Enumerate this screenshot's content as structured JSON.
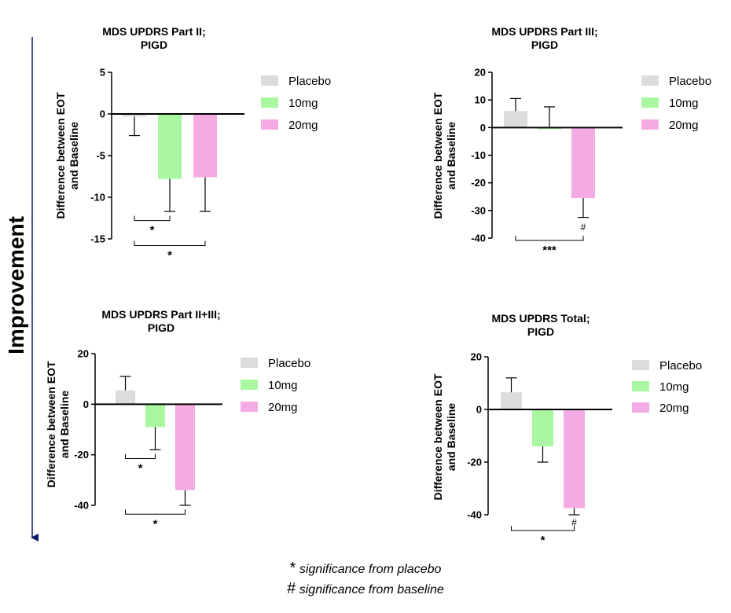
{
  "side_label": "Improvement",
  "footnotes": [
    {
      "symbol": "*",
      "text": "significance from placebo"
    },
    {
      "symbol": "#",
      "text": "significance from baseline"
    }
  ],
  "legend": [
    {
      "label": "Placebo",
      "color": "#dcdcdc"
    },
    {
      "label": "10mg",
      "color": "#a9f7a0"
    },
    {
      "label": "20mg",
      "color": "#f4abe3"
    }
  ],
  "chart_data": [
    {
      "type": "bar",
      "title_lines": [
        "MDS UPDRS Part II;",
        "PIGD"
      ],
      "ylabel_lines": [
        "Difference between EOT",
        "and Baseline"
      ],
      "categories": [
        "Placebo",
        "10mg",
        "20mg"
      ],
      "values": [
        -0.3,
        -7.8,
        -7.6
      ],
      "errors": [
        2.3,
        3.9,
        4.1
      ],
      "ylim": [
        -15,
        5
      ],
      "yticks": [
        5,
        0,
        -5,
        -10,
        -15
      ],
      "ytick_labels": [
        "5",
        "0",
        "-5",
        "-10",
        "-15"
      ],
      "colors": [
        "#dcdcdc",
        "#a9f7a0",
        "#f4abe3"
      ],
      "significance": [
        {
          "from": 0,
          "to": 1,
          "label": "*",
          "y": -12.8
        },
        {
          "from": 0,
          "to": 2,
          "label": "*",
          "y": -15.8
        }
      ],
      "bar_annotations": []
    },
    {
      "type": "bar",
      "title_lines": [
        "MDS UPDRS Part III;",
        "PIGD"
      ],
      "ylabel_lines": [
        "Difference between EOT",
        "and Baseline"
      ],
      "categories": [
        "Placebo",
        "10mg",
        "20mg"
      ],
      "values": [
        6.0,
        0,
        -25.5
      ],
      "errors": [
        4.5,
        7.5,
        7.0
      ],
      "ylim": [
        -40,
        20
      ],
      "yticks": [
        20,
        10,
        0,
        -10,
        -20,
        -30,
        -40
      ],
      "ytick_labels": [
        "20",
        "10",
        "0",
        "-10",
        "-20",
        "-30",
        "-40"
      ],
      "colors": [
        "#dcdcdc",
        "#a9f7a0",
        "#f4abe3"
      ],
      "significance": [
        {
          "from": 0,
          "to": 2,
          "label": "***",
          "y": -40.8
        }
      ],
      "bar_annotations": [
        {
          "bar": 2,
          "label": "#",
          "y": -36.0
        }
      ]
    },
    {
      "type": "bar",
      "title_lines": [
        "MDS UPDRS Part  II+III;",
        "PIGD"
      ],
      "ylabel_lines": [
        "Difference between EOT",
        "and Baseline"
      ],
      "categories": [
        "Placebo",
        "10mg",
        "20mg"
      ],
      "values": [
        5.5,
        -9.0,
        -34.0
      ],
      "errors": [
        5.5,
        9.0,
        6.0
      ],
      "ylim": [
        -40,
        20
      ],
      "yticks": [
        20,
        0,
        -20,
        -40
      ],
      "ytick_labels": [
        "20",
        "0",
        "-20",
        "-40"
      ],
      "colors": [
        "#dcdcdc",
        "#a9f7a0",
        "#f4abe3"
      ],
      "significance": [
        {
          "from": 0,
          "to": 1,
          "label": "*",
          "y": -21.5
        },
        {
          "from": 0,
          "to": 2,
          "label": "*",
          "y": -43.5
        }
      ],
      "bar_annotations": []
    },
    {
      "type": "bar",
      "title_lines": [
        "MDS UPDRS Total;",
        "PIGD"
      ],
      "ylabel_lines": [
        "Difference between EOT",
        "and Baseline"
      ],
      "categories": [
        "Placebo",
        "10mg",
        "20mg"
      ],
      "values": [
        6.5,
        -14.0,
        -37.5
      ],
      "errors": [
        5.5,
        6.0,
        2.5
      ],
      "ylim": [
        -40,
        20
      ],
      "yticks": [
        20,
        0,
        -20,
        -40
      ],
      "ytick_labels": [
        "20",
        "0",
        "-20",
        "-40"
      ],
      "colors": [
        "#dcdcdc",
        "#a9f7a0",
        "#f4abe3"
      ],
      "significance": [
        {
          "from": 0,
          "to": 2,
          "label": "*",
          "y": -46.0
        }
      ],
      "bar_annotations": [
        {
          "bar": 2,
          "label": "#",
          "y": -43.0
        }
      ]
    }
  ]
}
